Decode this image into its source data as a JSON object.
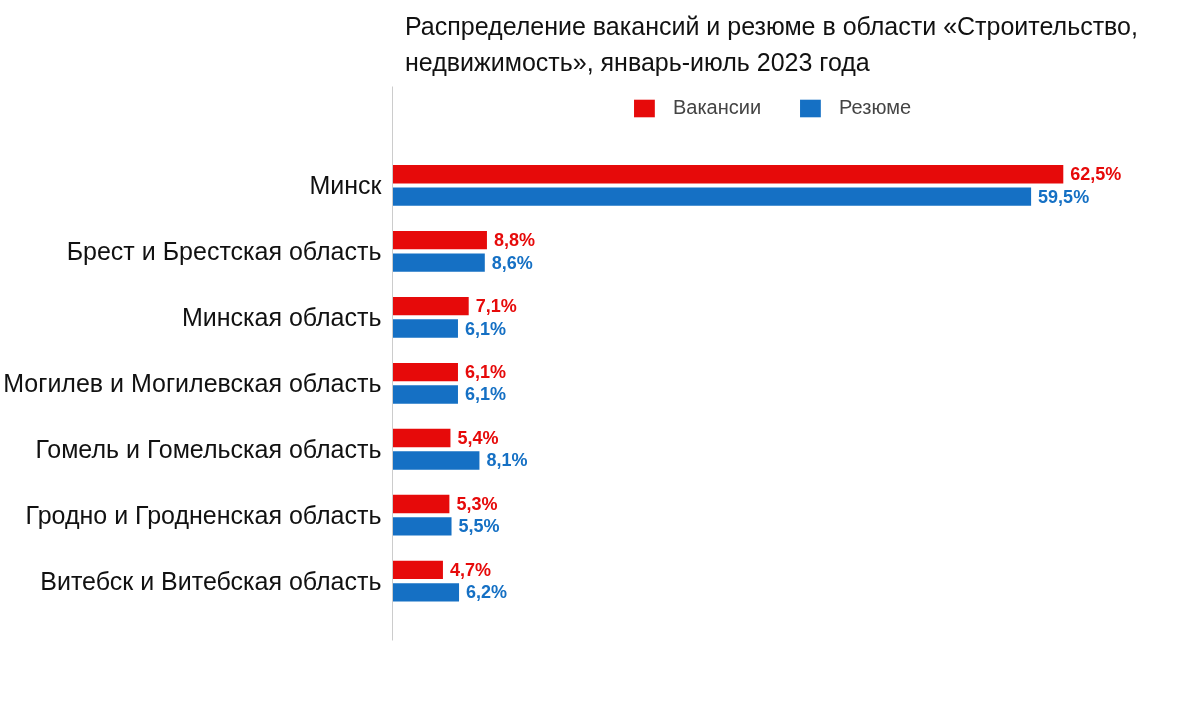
{
  "chart_data": {
    "type": "bar",
    "orientation": "horizontal",
    "title": "Распределение вакансий и резюме в области «Строительство, недвижимость», январь-июль 2023 года",
    "categories": [
      "Минск",
      "Брест и Брестская область",
      "Минская область",
      "Могилев и Могилевская область",
      "Гомель и Гомельская область",
      "Гродно и Гродненская область",
      "Витебск и Витебская область"
    ],
    "series": [
      {
        "name": "Вакансии",
        "color": "#e60a0a",
        "values": [
          62.5,
          8.8,
          7.1,
          6.1,
          5.4,
          5.3,
          4.7
        ],
        "value_labels": [
          "62,5%",
          "8,8%",
          "7,1%",
          "6,1%",
          "5,4%",
          "5,3%",
          "4,7%"
        ]
      },
      {
        "name": "Резюме",
        "color": "#1570c4",
        "values": [
          59.5,
          8.6,
          6.1,
          6.1,
          8.1,
          5.5,
          6.2
        ],
        "value_labels": [
          "59,5%",
          "8,6%",
          "6,1%",
          "6,1%",
          "8,1%",
          "5,5%",
          "6,2%"
        ]
      }
    ],
    "legend": "top",
    "grid": false,
    "tick_labels": "y"
  }
}
